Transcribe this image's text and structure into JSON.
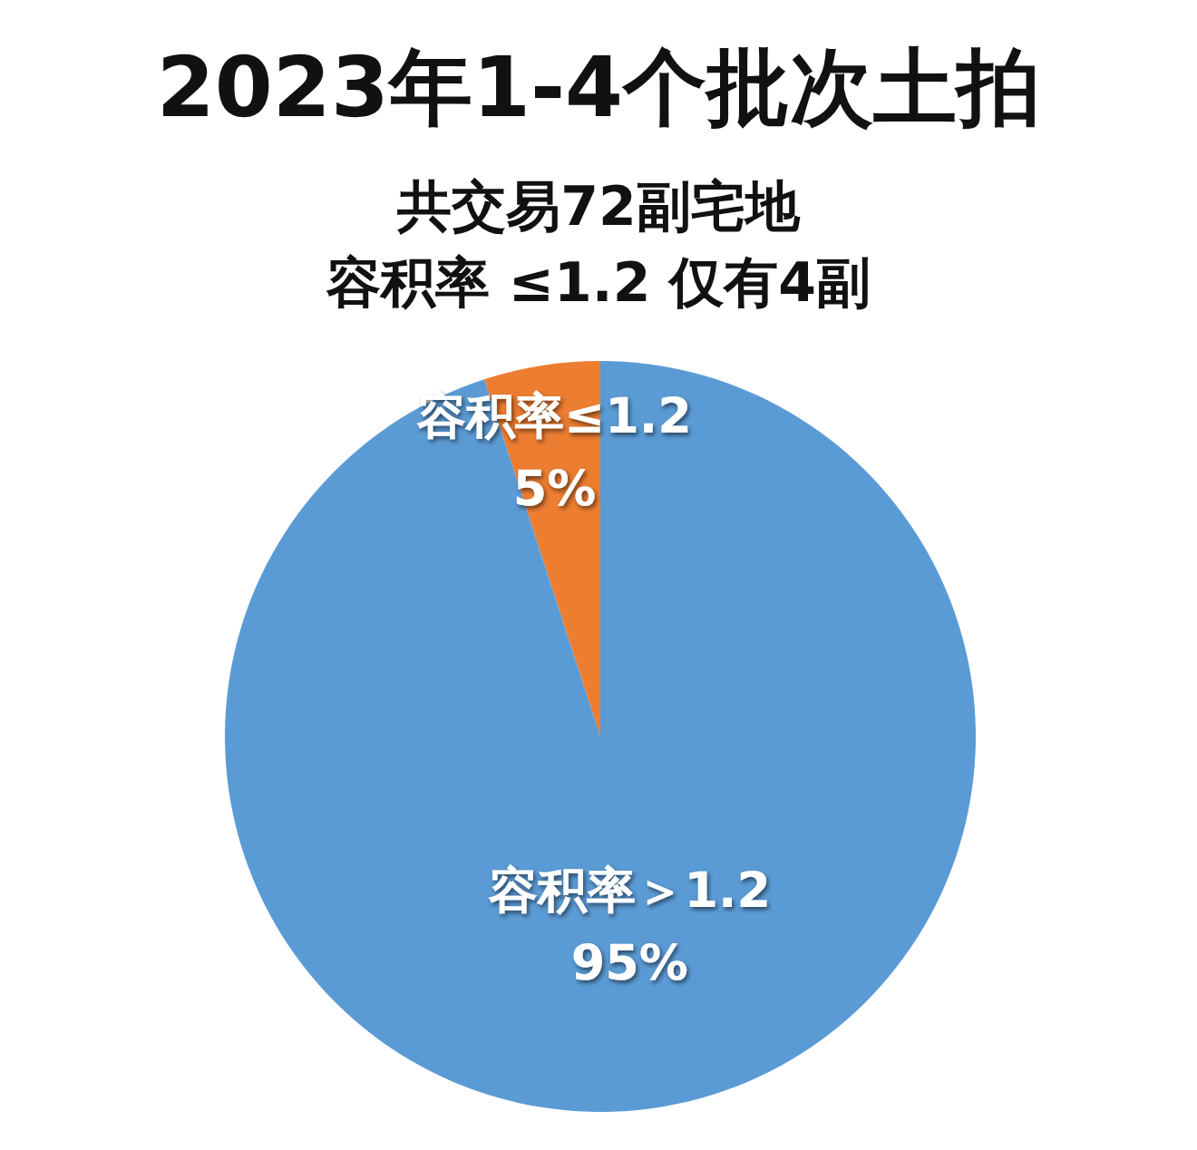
{
  "chart_data": {
    "type": "pie",
    "title": "2023年1-4个批次土拍",
    "subtitle": "共交易72副宅地",
    "annotations": [
      "容积率 ≤1.2 仅有4副"
    ],
    "categories": [
      "容积率≤1.2",
      "容积率＞1.2"
    ],
    "values": [
      5,
      95
    ],
    "colors": [
      "#ed7d31",
      "#5b9bd5"
    ],
    "value_labels": [
      "5%",
      "95%"
    ]
  }
}
